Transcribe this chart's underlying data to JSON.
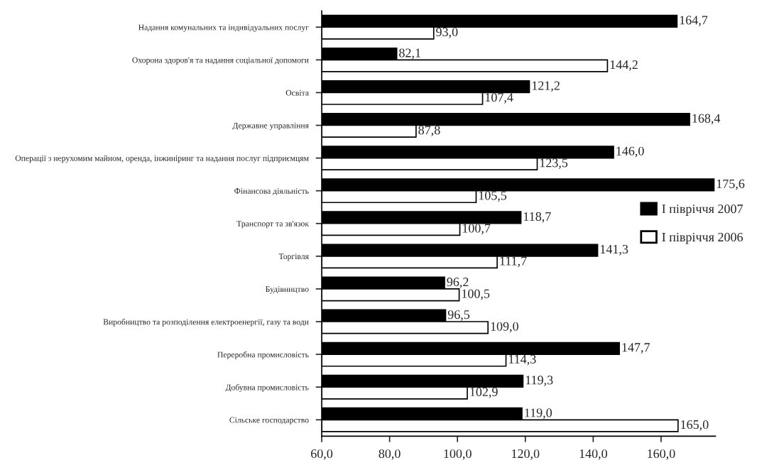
{
  "chart_data": {
    "type": "bar",
    "orientation": "horizontal",
    "categories": [
      "Надання комунальних та індивідуальних послуг",
      "Охорона здоров'я та надання соціальної допомоги",
      "Освіта",
      "Державне управління",
      "Операції з нерухомим майном, оренда, інжиніринг та надання послуг підприємцям",
      "Фінансова діяльність",
      "Транспорт та зв'язок",
      "Торгівля",
      "Будівництво",
      "Виробництво та розподілення електроенергії, газу та води",
      "Переробна промисловість",
      "Добувна промисловість",
      "Сільське господарство"
    ],
    "series": [
      {
        "name": "І півріччя 2007",
        "color": "#000000",
        "values": [
          164.7,
          82.1,
          121.2,
          168.4,
          146.0,
          175.6,
          118.7,
          141.3,
          96.2,
          96.5,
          147.7,
          119.3,
          119.0
        ],
        "value_labels": [
          "164,7",
          "82,1",
          "121,2",
          "168,4",
          "146,0",
          "175,6",
          "118,7",
          "141,3",
          "96,2",
          "96,5",
          "147,7",
          "119,3",
          "119,0"
        ]
      },
      {
        "name": "І півріччя 2006",
        "color": "#ffffff",
        "values": [
          93.0,
          144.2,
          107.4,
          87.8,
          123.5,
          105.5,
          100.7,
          111.7,
          100.5,
          109.0,
          114.3,
          102.9,
          165.0
        ],
        "value_labels": [
          "93,0",
          "144,2",
          "107,4",
          "87,8",
          "123,5",
          "105,5",
          "100,7",
          "111,7",
          "100,5",
          "109,0",
          "114,3",
          "102,9",
          "165,0"
        ]
      }
    ],
    "xlim": [
      60,
      176
    ],
    "xticks": [
      {
        "value": 60,
        "label": "60,0"
      },
      {
        "value": 80,
        "label": "80,0"
      },
      {
        "value": 100,
        "label": "100,0"
      },
      {
        "value": 120,
        "label": "120,0"
      },
      {
        "value": 140,
        "label": "140,0"
      },
      {
        "value": 160,
        "label": "160,0"
      }
    ],
    "legend": "right",
    "grid": false
  }
}
